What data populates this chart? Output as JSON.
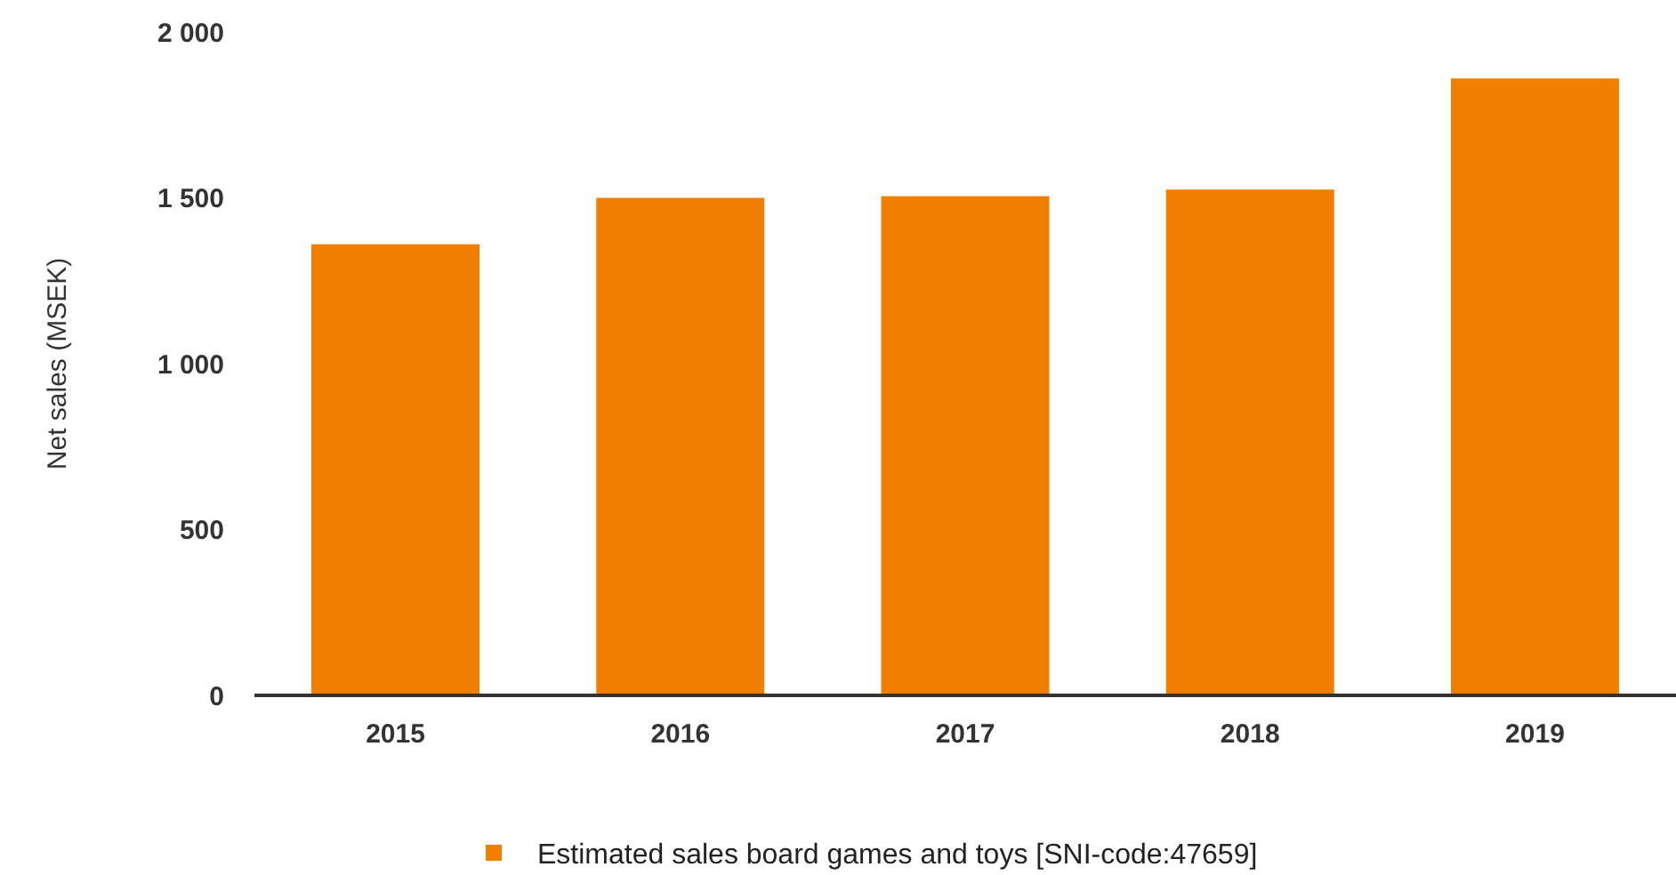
{
  "chart_data": {
    "type": "bar",
    "ylabel": "Net sales (MSEK)",
    "categories": [
      "2015",
      "2016",
      "2017",
      "2018",
      "2019"
    ],
    "series": [
      {
        "name": "Estimated sales board games and toys [SNI-code:47659]",
        "color": "#f07f00",
        "values": [
          1360,
          1500,
          1505,
          1525,
          1860
        ]
      }
    ],
    "ylim": [
      0,
      2000
    ],
    "yticks": [
      {
        "value": 0,
        "label": "0"
      },
      {
        "value": 500,
        "label": "500"
      },
      {
        "value": 1000,
        "label": "1 000"
      },
      {
        "value": 1500,
        "label": "1 500"
      },
      {
        "value": 2000,
        "label": "2 000"
      }
    ],
    "grid": false,
    "legend": "bottom"
  }
}
